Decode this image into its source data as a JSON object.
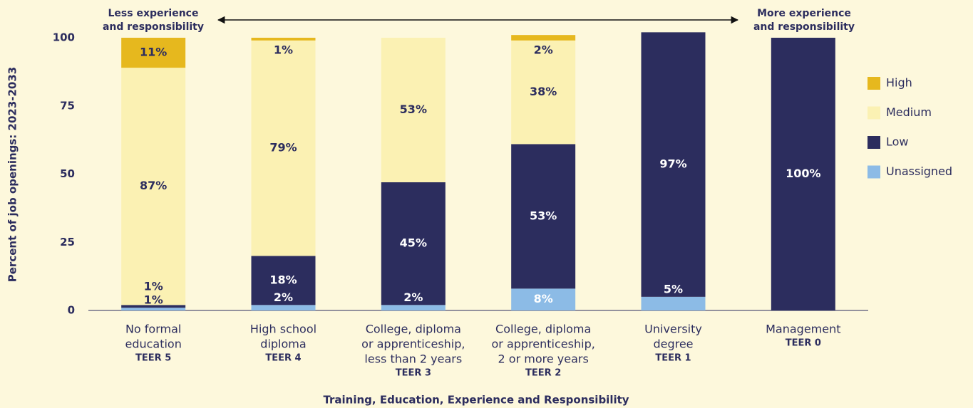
{
  "chart_data": {
    "type": "stacked_bar",
    "categories": [
      [
        "No formal",
        "education"
      ],
      [
        "High school",
        "diploma"
      ],
      [
        "College, diploma",
        "or apprenticeship,",
        "less than 2 years"
      ],
      [
        "College, diploma",
        "or apprenticeship,",
        "2 or more years"
      ],
      [
        "University",
        "degree"
      ],
      [
        "Management"
      ]
    ],
    "teer": [
      "TEER 5",
      "TEER 4",
      "TEER 3",
      "TEER 2",
      "TEER 1",
      "TEER 0"
    ],
    "series": [
      {
        "name": "Unassigned",
        "color": "#8cbbe6",
        "values": [
          1,
          2,
          2,
          8,
          5,
          null
        ],
        "value_labels": [
          "1%",
          "2%",
          "2%",
          "8%",
          "5%",
          null
        ]
      },
      {
        "name": "Low",
        "color": "#2c2d5e",
        "values": [
          1,
          18,
          45,
          53,
          97,
          100
        ],
        "value_labels": [
          "1%",
          "18%",
          "45%",
          "53%",
          "97%",
          "100%"
        ]
      },
      {
        "name": "Medium",
        "color": "#fbf1b3",
        "values": [
          87,
          79,
          53,
          38,
          null,
          null
        ],
        "value_labels": [
          "87%",
          "79%",
          "53%",
          "38%",
          null,
          null
        ]
      },
      {
        "name": "High",
        "color": "#e6b81e",
        "values": [
          11,
          1,
          null,
          2,
          null,
          null
        ],
        "value_labels": [
          "11%",
          "1%",
          null,
          "2%",
          null,
          null
        ]
      }
    ],
    "ylim": [
      0,
      100
    ],
    "yticks": [
      0,
      25,
      50,
      75,
      100
    ],
    "y_label": "Percent of job openings: 2023-2033",
    "x_label": "Training, Education, Experience and Responsibility",
    "annotations": {
      "left": [
        "Less experience",
        "and responsibility"
      ],
      "right": [
        "More experience",
        "and responsibility"
      ]
    }
  }
}
